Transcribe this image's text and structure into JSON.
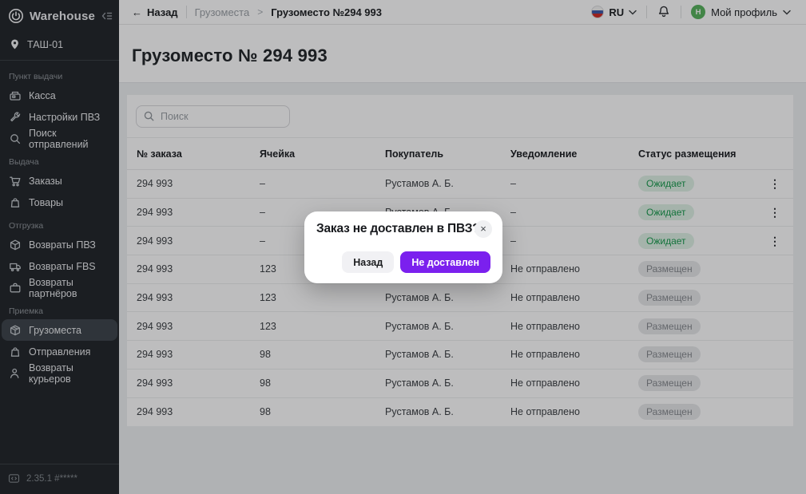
{
  "sidebar": {
    "brand": "Warehouse",
    "location": "ТАШ-01",
    "sections": [
      {
        "label": "Пункт выдачи",
        "items": [
          {
            "id": "kassa",
            "icon": "cash-register",
            "label": "Касса"
          },
          {
            "id": "pvz-settings",
            "icon": "wrench",
            "label": "Настройки ПВЗ"
          },
          {
            "id": "search-shipments",
            "icon": "search",
            "label": "Поиск отправлений"
          }
        ]
      },
      {
        "label": "Выдача",
        "items": [
          {
            "id": "orders",
            "icon": "cart",
            "label": "Заказы"
          },
          {
            "id": "goods",
            "icon": "bag",
            "label": "Товары"
          }
        ]
      },
      {
        "label": "Отгрузка",
        "items": [
          {
            "id": "returns-pvz",
            "icon": "box-return",
            "label": "Возвраты ПВЗ"
          },
          {
            "id": "returns-fbs",
            "icon": "truck-return",
            "label": "Возвраты FBS"
          },
          {
            "id": "returns-partners",
            "icon": "briefcase-return",
            "label": "Возвраты партнёров"
          }
        ]
      },
      {
        "label": "Приемка",
        "items": [
          {
            "id": "cargo",
            "icon": "box",
            "label": "Грузоместа",
            "active": true
          },
          {
            "id": "shipments",
            "icon": "bag",
            "label": "Отправления"
          },
          {
            "id": "courier-returns",
            "icon": "person-return",
            "label": "Возвраты курьеров"
          }
        ]
      }
    ],
    "version": "2.35.1 #*****"
  },
  "topbar": {
    "back_label": "Назад",
    "back_arrow": "←",
    "breadcrumb_parent": "Грузоместа",
    "breadcrumb_separator": ">",
    "breadcrumb_current": "Грузоместо №294 993",
    "language": "RU",
    "profile_label": "Мой профиль",
    "profile_initial": "Н"
  },
  "page": {
    "title": "Грузоместо № 294 993"
  },
  "search": {
    "placeholder": "Поиск"
  },
  "table": {
    "headers": [
      "№ заказа",
      "Ячейка",
      "Покупатель",
      "Уведомление",
      "Статус размещения"
    ],
    "kebab_glyph": "⋮",
    "rows": [
      {
        "order": "294 993",
        "cell": "–",
        "buyer": "Рустамов А. Б.",
        "notification": "–",
        "status": "Ожидает",
        "status_type": "pending",
        "menu": true
      },
      {
        "order": "294 993",
        "cell": "–",
        "buyer": "Рустамов А. Б.",
        "notification": "–",
        "status": "Ожидает",
        "status_type": "pending",
        "menu": true
      },
      {
        "order": "294 993",
        "cell": "–",
        "buyer": "Рустамов А. Б.",
        "notification": "–",
        "status": "Ожидает",
        "status_type": "pending",
        "menu": true
      },
      {
        "order": "294 993",
        "cell": "123",
        "buyer": "Рустамов А. Б.",
        "notification": "Не отправлено",
        "status": "Размещен",
        "status_type": "placed",
        "menu": false
      },
      {
        "order": "294 993",
        "cell": "123",
        "buyer": "Рустамов А. Б.",
        "notification": "Не отправлено",
        "status": "Размещен",
        "status_type": "placed",
        "menu": false
      },
      {
        "order": "294 993",
        "cell": "123",
        "buyer": "Рустамов А. Б.",
        "notification": "Не отправлено",
        "status": "Размещен",
        "status_type": "placed",
        "menu": false
      },
      {
        "order": "294 993",
        "cell": "98",
        "buyer": "Рустамов А. Б.",
        "notification": "Не отправлено",
        "status": "Размещен",
        "status_type": "placed",
        "menu": false
      },
      {
        "order": "294 993",
        "cell": "98",
        "buyer": "Рустамов А. Б.",
        "notification": "Не отправлено",
        "status": "Размещен",
        "status_type": "placed",
        "menu": false
      },
      {
        "order": "294 993",
        "cell": "98",
        "buyer": "Рустамов А. Б.",
        "notification": "Не отправлено",
        "status": "Размещен",
        "status_type": "placed",
        "menu": false
      }
    ]
  },
  "modal": {
    "title": "Заказ не доставлен в ПВЗ?",
    "close_glyph": "×",
    "back_button": "Назад",
    "confirm_button": "Не доставлен"
  },
  "colors": {
    "accent_purple": "#7b20ee",
    "status_pending_text": "#169a4c",
    "status_pending_bg": "#dff1e5",
    "status_placed_text": "#85898e",
    "status_placed_bg": "#e7e8ea",
    "avatar_green": "#57b35c",
    "sidebar_bg": "#22262a"
  }
}
